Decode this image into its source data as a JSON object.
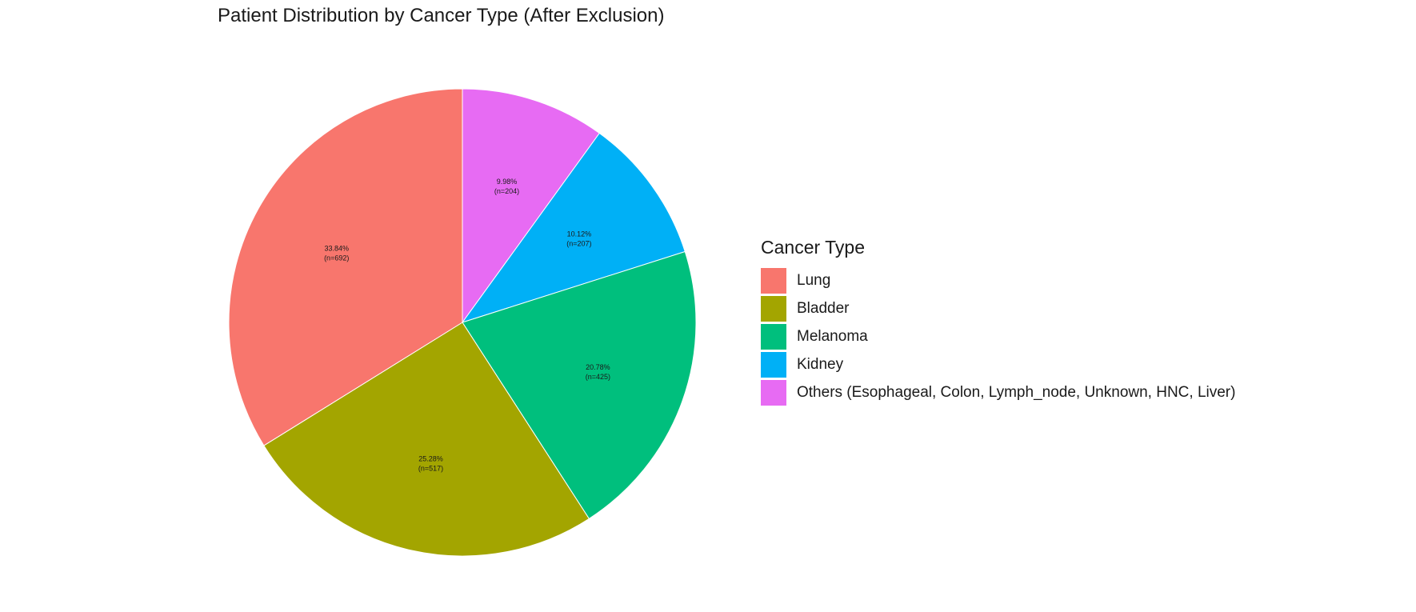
{
  "chart_data": {
    "type": "pie",
    "title": "Patient Distribution by Cancer Type (After Exclusion)",
    "legend_title": "Cancer Type",
    "legend_position": "right",
    "start": "top",
    "direction": "clockwise",
    "slices": [
      {
        "name": "Others (Esophageal, Colon, Lymph_node, Unknown, HNC, Liver)",
        "value": 204,
        "percent": "9.98%",
        "n_label": "(n=204)",
        "color": "#E76BF3"
      },
      {
        "name": "Kidney",
        "value": 207,
        "percent": "10.12%",
        "n_label": "(n=207)",
        "color": "#00B0F6"
      },
      {
        "name": "Melanoma",
        "value": 425,
        "percent": "20.78%",
        "n_label": "(n=425)",
        "color": "#00BF7D"
      },
      {
        "name": "Bladder",
        "value": 517,
        "percent": "25.28%",
        "n_label": "(n=517)",
        "color": "#A3A500"
      },
      {
        "name": "Lung",
        "value": 692,
        "percent": "33.84%",
        "n_label": "(n=692)",
        "color": "#F8766D"
      }
    ],
    "legend_order": [
      "Lung",
      "Bladder",
      "Melanoma",
      "Kidney",
      "Others (Esophageal, Colon, Lymph_node, Unknown, HNC, Liver)"
    ]
  }
}
